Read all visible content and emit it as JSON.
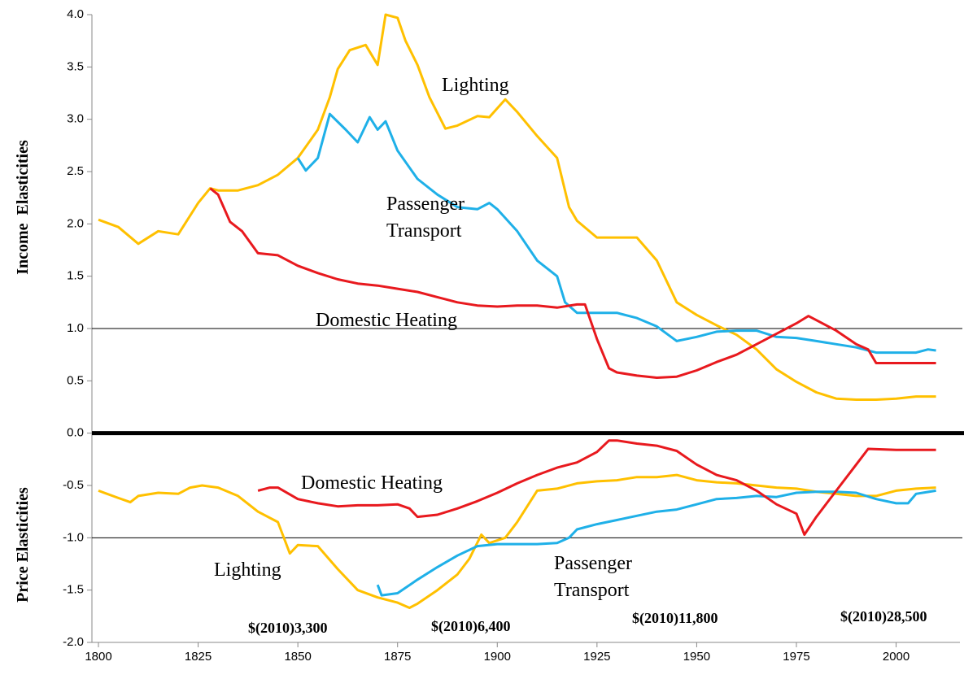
{
  "chart_data": {
    "type": "line",
    "y_axis_labels": [
      "Income  Elasticities",
      "Price Elasticities"
    ],
    "xlim": [
      1800,
      2016
    ],
    "xticks": [
      1800,
      1825,
      1850,
      1875,
      1900,
      1925,
      1950,
      1975,
      2000
    ],
    "ylim": [
      -2.0,
      4.0
    ],
    "yticks": [
      {
        "value": -2.0,
        "label": "-2.0"
      },
      {
        "value": -1.5,
        "label": "-1.5"
      },
      {
        "value": -1.0,
        "label": "-1.0"
      },
      {
        "value": -0.5,
        "label": "-0.5"
      },
      {
        "value": 0.0,
        "label": "0.0"
      },
      {
        "value": 0.5,
        "label": "0.5"
      },
      {
        "value": 1.0,
        "label": "1.0"
      },
      {
        "value": 1.5,
        "label": "1.5"
      },
      {
        "value": 2.0,
        "label": "2.0"
      },
      {
        "value": 2.5,
        "label": "2.5"
      },
      {
        "value": 3.0,
        "label": "3.0"
      },
      {
        "value": 3.5,
        "label": "3.5"
      },
      {
        "value": 4.0,
        "label": "4.0"
      }
    ],
    "reference_lines": [
      1,
      0,
      -1
    ],
    "series": [
      {
        "color": "#ffc000",
        "x": [
          1800,
          1805,
          1810,
          1815,
          1820,
          1825,
          1828,
          1830,
          1835,
          1840,
          1845,
          1850,
          1855,
          1858,
          1860,
          1863,
          1867,
          1870,
          1872,
          1875,
          1877,
          1880,
          1883,
          1887,
          1890,
          1895,
          1898,
          1902,
          1905,
          1910,
          1915,
          1918,
          1920,
          1925,
          1930,
          1935,
          1940,
          1945,
          1950,
          1955,
          1960,
          1965,
          1970,
          1975,
          1980,
          1985,
          1990,
          1995,
          2000,
          2005,
          2010
        ],
        "values": [
          2.04,
          1.97,
          1.81,
          1.93,
          1.9,
          2.2,
          2.34,
          2.32,
          2.32,
          2.37,
          2.47,
          2.63,
          2.9,
          3.21,
          3.48,
          3.66,
          3.71,
          3.52,
          4.0,
          3.97,
          3.75,
          3.52,
          3.21,
          2.91,
          2.94,
          3.03,
          3.02,
          3.19,
          3.07,
          2.84,
          2.63,
          2.16,
          2.03,
          1.87,
          1.87,
          1.87,
          1.65,
          1.25,
          1.13,
          1.03,
          0.94,
          0.8,
          0.61,
          0.49,
          0.39,
          0.33,
          0.32,
          0.32,
          0.33,
          0.35,
          0.35
        ]
      },
      {
        "color": "#1fb0e8",
        "x": [
          1850,
          1852,
          1855,
          1858,
          1862,
          1865,
          1868,
          1870,
          1872,
          1875,
          1880,
          1885,
          1890,
          1895,
          1898,
          1900,
          1905,
          1910,
          1915,
          1917,
          1920,
          1925,
          1930,
          1935,
          1940,
          1945,
          1950,
          1955,
          1960,
          1965,
          1970,
          1975,
          1980,
          1985,
          1990,
          1995,
          2000,
          2005,
          2008,
          2010
        ],
        "values": [
          2.63,
          2.51,
          2.63,
          3.05,
          2.9,
          2.78,
          3.02,
          2.9,
          2.98,
          2.7,
          2.43,
          2.28,
          2.16,
          2.14,
          2.2,
          2.14,
          1.93,
          1.65,
          1.5,
          1.25,
          1.15,
          1.15,
          1.15,
          1.1,
          1.02,
          0.88,
          0.92,
          0.97,
          0.98,
          0.98,
          0.92,
          0.91,
          0.88,
          0.85,
          0.82,
          0.77,
          0.77,
          0.77,
          0.8,
          0.79
        ]
      },
      {
        "color": "#e8191e",
        "x": [
          1828,
          1830,
          1833,
          1836,
          1840,
          1845,
          1850,
          1855,
          1860,
          1865,
          1870,
          1875,
          1880,
          1885,
          1890,
          1895,
          1900,
          1905,
          1910,
          1915,
          1920,
          1922,
          1925,
          1928,
          1930,
          1935,
          1940,
          1945,
          1950,
          1955,
          1960,
          1965,
          1970,
          1975,
          1978,
          1980,
          1985,
          1990,
          1993,
          1995,
          2000,
          2010
        ],
        "values": [
          2.34,
          2.28,
          2.02,
          1.93,
          1.72,
          1.7,
          1.6,
          1.53,
          1.47,
          1.43,
          1.41,
          1.38,
          1.35,
          1.3,
          1.25,
          1.22,
          1.21,
          1.22,
          1.22,
          1.2,
          1.23,
          1.23,
          0.9,
          0.62,
          0.58,
          0.55,
          0.53,
          0.54,
          0.6,
          0.68,
          0.75,
          0.85,
          0.95,
          1.05,
          1.12,
          1.08,
          0.98,
          0.85,
          0.8,
          0.67,
          0.67,
          0.67
        ]
      },
      {
        "color": "#ffc000",
        "x": [
          1800,
          1805,
          1808,
          1810,
          1815,
          1820,
          1823,
          1826,
          1830,
          1835,
          1840,
          1845,
          1848,
          1850,
          1855,
          1860,
          1865,
          1870,
          1875,
          1878,
          1880,
          1885,
          1890,
          1893,
          1896,
          1898,
          1902,
          1905,
          1910,
          1915,
          1920,
          1925,
          1930,
          1935,
          1940,
          1945,
          1950,
          1955,
          1960,
          1965,
          1970,
          1975,
          1980,
          1985,
          1990,
          1995,
          2000,
          2005,
          2010
        ],
        "values": [
          -0.55,
          -0.62,
          -0.66,
          -0.6,
          -0.57,
          -0.58,
          -0.52,
          -0.5,
          -0.52,
          -0.6,
          -0.75,
          -0.85,
          -1.15,
          -1.07,
          -1.08,
          -1.3,
          -1.5,
          -1.57,
          -1.62,
          -1.67,
          -1.63,
          -1.5,
          -1.35,
          -1.2,
          -0.97,
          -1.05,
          -1.0,
          -0.85,
          -0.55,
          -0.53,
          -0.48,
          -0.46,
          -0.45,
          -0.42,
          -0.42,
          -0.4,
          -0.45,
          -0.47,
          -0.48,
          -0.5,
          -0.52,
          -0.53,
          -0.56,
          -0.58,
          -0.6,
          -0.6,
          -0.55,
          -0.53,
          -0.52
        ]
      },
      {
        "color": "#1fb0e8",
        "x": [
          1870,
          1871,
          1875,
          1880,
          1885,
          1890,
          1895,
          1900,
          1905,
          1910,
          1915,
          1918,
          1920,
          1925,
          1930,
          1935,
          1940,
          1945,
          1950,
          1955,
          1960,
          1965,
          1970,
          1975,
          1980,
          1985,
          1990,
          1995,
          2000,
          2003,
          2005,
          2010
        ],
        "values": [
          -1.45,
          -1.55,
          -1.53,
          -1.4,
          -1.28,
          -1.17,
          -1.08,
          -1.06,
          -1.06,
          -1.06,
          -1.05,
          -1.0,
          -0.92,
          -0.87,
          -0.83,
          -0.79,
          -0.75,
          -0.73,
          -0.68,
          -0.63,
          -0.62,
          -0.6,
          -0.61,
          -0.57,
          -0.56,
          -0.56,
          -0.57,
          -0.63,
          -0.67,
          -0.67,
          -0.58,
          -0.55
        ]
      },
      {
        "color": "#e8191e",
        "x": [
          1840,
          1843,
          1845,
          1850,
          1855,
          1860,
          1865,
          1870,
          1875,
          1878,
          1880,
          1885,
          1890,
          1895,
          1900,
          1905,
          1910,
          1915,
          1920,
          1925,
          1928,
          1930,
          1935,
          1940,
          1945,
          1950,
          1955,
          1960,
          1965,
          1970,
          1975,
          1977,
          1980,
          1985,
          1990,
          1993,
          2000,
          2010
        ],
        "values": [
          -0.55,
          -0.52,
          -0.52,
          -0.63,
          -0.67,
          -0.7,
          -0.69,
          -0.69,
          -0.68,
          -0.72,
          -0.8,
          -0.78,
          -0.72,
          -0.65,
          -0.57,
          -0.48,
          -0.4,
          -0.33,
          -0.28,
          -0.18,
          -0.07,
          -0.07,
          -0.1,
          -0.12,
          -0.17,
          -0.3,
          -0.4,
          -0.45,
          -0.55,
          -0.68,
          -0.77,
          -0.97,
          -0.8,
          -0.55,
          -0.3,
          -0.15,
          -0.16,
          -0.16
        ]
      }
    ],
    "annotations": [
      {
        "lines": [
          "Lighting"
        ]
      },
      {
        "lines": [
          "Passenger",
          "Transport"
        ]
      },
      {
        "lines": [
          "Domestic Heating"
        ]
      },
      {
        "lines": [
          "Domestic Heating"
        ]
      },
      {
        "lines": [
          "Lighting"
        ]
      },
      {
        "lines": [
          "Passenger",
          "Transport"
        ]
      }
    ],
    "income_labels": [
      "$(2010)3,300",
      "$(2010)6,400",
      "$(2010)11,800",
      "$(2010)28,500"
    ]
  }
}
